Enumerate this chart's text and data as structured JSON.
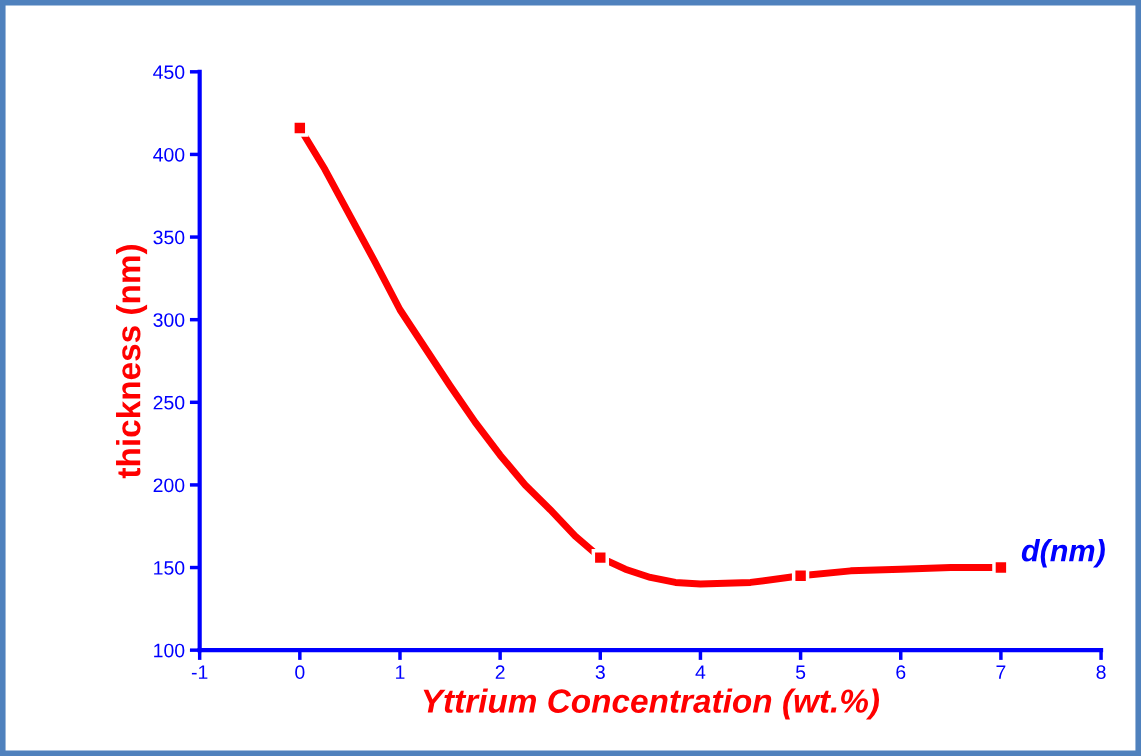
{
  "chart_data": {
    "type": "scatter",
    "xlabel": "Yttrium Concentration (wt.%)",
    "ylabel": "thickness (nm)",
    "x": [
      0,
      3,
      5,
      7
    ],
    "series": [
      {
        "type": "line",
        "marker": "none",
        "color": "#ff0000",
        "x": [
          0,
          0.25,
          0.5,
          0.75,
          1,
          1.25,
          1.5,
          1.75,
          2,
          2.25,
          2.5,
          2.75,
          3,
          3.25,
          3.5,
          3.75,
          4,
          4.5,
          5,
          5.5,
          6,
          6.5,
          7
        ],
        "values": [
          416,
          391,
          363,
          335,
          306,
          283,
          260,
          238,
          218,
          200,
          185,
          169,
          156,
          149,
          144,
          141,
          140,
          141,
          145,
          148,
          149,
          150,
          150
        ]
      },
      {
        "name": "d(nm)",
        "color": "#ff0000",
        "values": [
          416,
          156,
          145,
          150
        ]
      }
    ],
    "xlim": [
      -1,
      8
    ],
    "xticks": [
      -1,
      0,
      1,
      2,
      3,
      4,
      5,
      6,
      7,
      8
    ],
    "ylim": [
      100,
      450
    ],
    "yticks": [
      100,
      150,
      200,
      250,
      300,
      350,
      400,
      450
    ],
    "marker": "square",
    "line_style": "solid",
    "grid": false,
    "legend": false
  }
}
